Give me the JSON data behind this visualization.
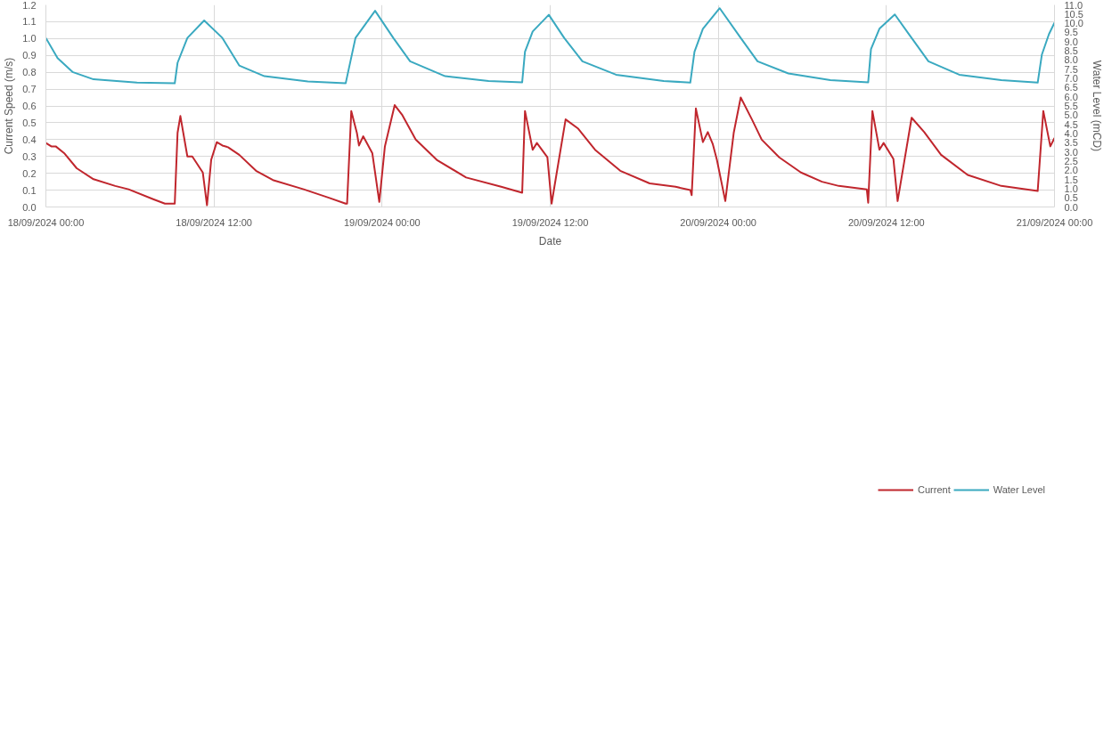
{
  "chart_data": {
    "type": "line",
    "xlabel": "Date",
    "ylabel": "Current Speed (m/s)",
    "y2label": "Water Level (mCD)",
    "xlim": [
      "2024-09-18T00:00",
      "2024-09-21T00:00"
    ],
    "xticks": [
      {
        "value": "2024-09-18T00:00",
        "label": "18/09/2024 00:00"
      },
      {
        "value": "2024-09-18T12:00",
        "label": "18/09/2024 12:00"
      },
      {
        "value": "2024-09-19T00:00",
        "label": "19/09/2024 00:00"
      },
      {
        "value": "2024-09-19T12:00",
        "label": "19/09/2024 12:00"
      },
      {
        "value": "2024-09-20T00:00",
        "label": "20/09/2024 00:00"
      },
      {
        "value": "2024-09-20T12:00",
        "label": "20/09/2024 12:00"
      },
      {
        "value": "2024-09-21T00:00",
        "label": "21/09/2024 00:00"
      }
    ],
    "ylim": [
      0,
      1.2
    ],
    "yticks": [
      {
        "value": 0,
        "label": "0.0"
      },
      {
        "value": 0.1,
        "label": "0.1"
      },
      {
        "value": 0.2,
        "label": "0.2"
      },
      {
        "value": 0.3,
        "label": "0.3"
      },
      {
        "value": 0.4,
        "label": "0.4"
      },
      {
        "value": 0.5,
        "label": "0.5"
      },
      {
        "value": 0.6,
        "label": "0.6"
      },
      {
        "value": 0.7,
        "label": "0.7"
      },
      {
        "value": 0.8,
        "label": "0.8"
      },
      {
        "value": 0.9,
        "label": "0.9"
      },
      {
        "value": 1,
        "label": "1.0"
      },
      {
        "value": 1.1,
        "label": "1.1"
      },
      {
        "value": 1.2,
        "label": "1.2"
      }
    ],
    "y2lim": [
      0,
      11
    ],
    "y2ticks": [
      {
        "value": 0,
        "label": "0.0"
      },
      {
        "value": 0.5,
        "label": "0.5"
      },
      {
        "value": 1,
        "label": "1.0"
      },
      {
        "value": 1.5,
        "label": "1.5"
      },
      {
        "value": 2,
        "label": "2.0"
      },
      {
        "value": 2.5,
        "label": "2.5"
      },
      {
        "value": 3,
        "label": "3.0"
      },
      {
        "value": 3.5,
        "label": "3.5"
      },
      {
        "value": 4,
        "label": "4.0"
      },
      {
        "value": 4.5,
        "label": "4.5"
      },
      {
        "value": 5,
        "label": "5.0"
      },
      {
        "value": 5.5,
        "label": "5.5"
      },
      {
        "value": 6,
        "label": "6.0"
      },
      {
        "value": 6.5,
        "label": "6.5"
      },
      {
        "value": 7,
        "label": "7.0"
      },
      {
        "value": 7.5,
        "label": "7.5"
      },
      {
        "value": 8,
        "label": "8.0"
      },
      {
        "value": 8.5,
        "label": "8.5"
      },
      {
        "value": 9,
        "label": "9.0"
      },
      {
        "value": 9.5,
        "label": "9.5"
      },
      {
        "value": 10,
        "label": "10.0"
      },
      {
        "value": 10.5,
        "label": "10.5"
      },
      {
        "value": 11,
        "label": "11.0"
      }
    ],
    "grid": true,
    "legend": "bottom",
    "marker": "none",
    "line_style": "solid",
    "series": [
      {
        "name": "Current",
        "color": "#c0262d",
        "x": [
          "2024-09-18T00:00",
          "2024-09-18T00:23",
          "2024-09-18T00:42",
          "2024-09-18T01:18",
          "2024-09-18T02:12",
          "2024-09-18T03:24",
          "2024-09-18T04:57",
          "2024-09-18T05:54",
          "2024-09-18T07:42",
          "2024-09-18T08:30",
          "2024-09-18T09:12",
          "2024-09-18T09:24",
          "2024-09-18T09:36",
          "2024-09-18T10:06",
          "2024-09-18T10:27",
          "2024-09-18T11:12",
          "2024-09-18T11:30",
          "2024-09-18T11:48",
          "2024-09-18T12:12",
          "2024-09-18T12:36",
          "2024-09-18T13:00",
          "2024-09-18T13:48",
          "2024-09-18T15:00",
          "2024-09-18T16:12",
          "2024-09-18T18:24",
          "2024-09-18T20:12",
          "2024-09-18T21:24",
          "2024-09-18T21:30",
          "2024-09-18T21:48",
          "2024-09-18T22:12",
          "2024-09-18T22:21",
          "2024-09-18T22:39",
          "2024-09-18T23:18",
          "2024-09-18T23:48",
          "2024-09-19T00:12",
          "2024-09-19T00:54",
          "2024-09-19T01:27",
          "2024-09-19T02:24",
          "2024-09-19T03:54",
          "2024-09-19T06:00",
          "2024-09-19T08:30",
          "2024-09-19T10:00",
          "2024-09-19T10:12",
          "2024-09-19T10:45",
          "2024-09-19T11:03",
          "2024-09-19T11:48",
          "2024-09-19T12:06",
          "2024-09-19T13:06",
          "2024-09-19T14:00",
          "2024-09-19T15:12",
          "2024-09-19T17:00",
          "2024-09-19T19:06",
          "2024-09-19T20:57",
          "2024-09-19T22:00",
          "2024-09-19T22:06",
          "2024-09-19T22:24",
          "2024-09-19T22:54",
          "2024-09-19T23:15",
          "2024-09-19T23:36",
          "2024-09-19T23:54",
          "2024-09-20T00:30",
          "2024-09-20T01:06",
          "2024-09-20T01:36",
          "2024-09-20T02:24",
          "2024-09-20T03:06",
          "2024-09-20T04:21",
          "2024-09-20T05:54",
          "2024-09-20T07:24",
          "2024-09-20T08:36",
          "2024-09-20T10:36",
          "2024-09-20T10:42",
          "2024-09-20T11:00",
          "2024-09-20T11:30",
          "2024-09-20T11:48",
          "2024-09-20T12:30",
          "2024-09-20T12:48",
          "2024-09-20T13:48",
          "2024-09-20T14:42",
          "2024-09-20T15:54",
          "2024-09-20T17:48",
          "2024-09-20T20:12",
          "2024-09-20T22:00",
          "2024-09-20T22:48",
          "2024-09-20T23:12",
          "2024-09-20T23:42",
          "2024-09-21T00:00"
        ],
        "values": [
          0.38,
          0.36,
          0.36,
          0.32,
          0.23,
          0.165,
          0.125,
          0.105,
          0.045,
          0.02,
          0.02,
          0.44,
          0.54,
          0.3,
          0.3,
          0.205,
          0.01,
          0.28,
          0.385,
          0.365,
          0.355,
          0.31,
          0.215,
          0.16,
          0.105,
          0.055,
          0.02,
          0.02,
          0.57,
          0.44,
          0.365,
          0.42,
          0.32,
          0.03,
          0.36,
          0.605,
          0.545,
          0.4,
          0.28,
          0.175,
          0.12,
          0.085,
          0.57,
          0.34,
          0.38,
          0.295,
          0.02,
          0.52,
          0.465,
          0.34,
          0.215,
          0.14,
          0.12,
          0.1,
          0.07,
          0.585,
          0.385,
          0.445,
          0.375,
          0.28,
          0.035,
          0.44,
          0.65,
          0.52,
          0.4,
          0.295,
          0.205,
          0.15,
          0.125,
          0.105,
          0.025,
          0.57,
          0.34,
          0.38,
          0.285,
          0.035,
          0.53,
          0.445,
          0.31,
          0.19,
          0.125,
          0.105,
          0.095,
          0.57,
          0.36,
          0.41
        ]
      },
      {
        "name": "Water Level",
        "color": "#3aa9c0",
        "axis": "y2",
        "x": [
          "2024-09-18T00:00",
          "2024-09-18T00:50",
          "2024-09-18T01:54",
          "2024-09-18T03:24",
          "2024-09-18T06:30",
          "2024-09-18T09:12",
          "2024-09-18T09:24",
          "2024-09-18T10:06",
          "2024-09-18T11:18",
          "2024-09-18T12:36",
          "2024-09-18T13:48",
          "2024-09-18T15:36",
          "2024-09-18T18:42",
          "2024-09-18T21:24",
          "2024-09-18T22:06",
          "2024-09-18T23:30",
          "2024-09-19T00:48",
          "2024-09-19T02:00",
          "2024-09-19T04:30",
          "2024-09-19T07:36",
          "2024-09-19T10:00",
          "2024-09-19T10:12",
          "2024-09-19T10:45",
          "2024-09-19T11:54",
          "2024-09-19T13:00",
          "2024-09-19T14:18",
          "2024-09-19T16:42",
          "2024-09-19T20:06",
          "2024-09-19T22:00",
          "2024-09-19T22:18",
          "2024-09-19T22:54",
          "2024-09-20T00:06",
          "2024-09-20T01:36",
          "2024-09-20T02:48",
          "2024-09-20T05:00",
          "2024-09-20T08:00",
          "2024-09-20T10:42",
          "2024-09-20T10:54",
          "2024-09-20T11:30",
          "2024-09-20T12:36",
          "2024-09-20T13:48",
          "2024-09-20T15:00",
          "2024-09-20T17:12",
          "2024-09-20T20:12",
          "2024-09-20T22:48",
          "2024-09-20T23:06",
          "2024-09-20T23:36",
          "2024-09-21T00:00"
        ],
        "values": [
          9.2,
          8.1,
          7.35,
          6.95,
          6.77,
          6.73,
          7.85,
          9.2,
          10.15,
          9.2,
          7.7,
          7.12,
          6.83,
          6.73,
          9.2,
          10.68,
          9.2,
          7.93,
          7.12,
          6.86,
          6.79,
          8.45,
          9.55,
          10.46,
          9.2,
          7.93,
          7.2,
          6.86,
          6.77,
          8.45,
          9.7,
          10.82,
          9.2,
          7.93,
          7.27,
          6.9,
          6.79,
          8.6,
          9.7,
          10.48,
          9.2,
          7.93,
          7.2,
          6.9,
          6.77,
          8.3,
          9.4,
          10.03
        ]
      }
    ]
  }
}
